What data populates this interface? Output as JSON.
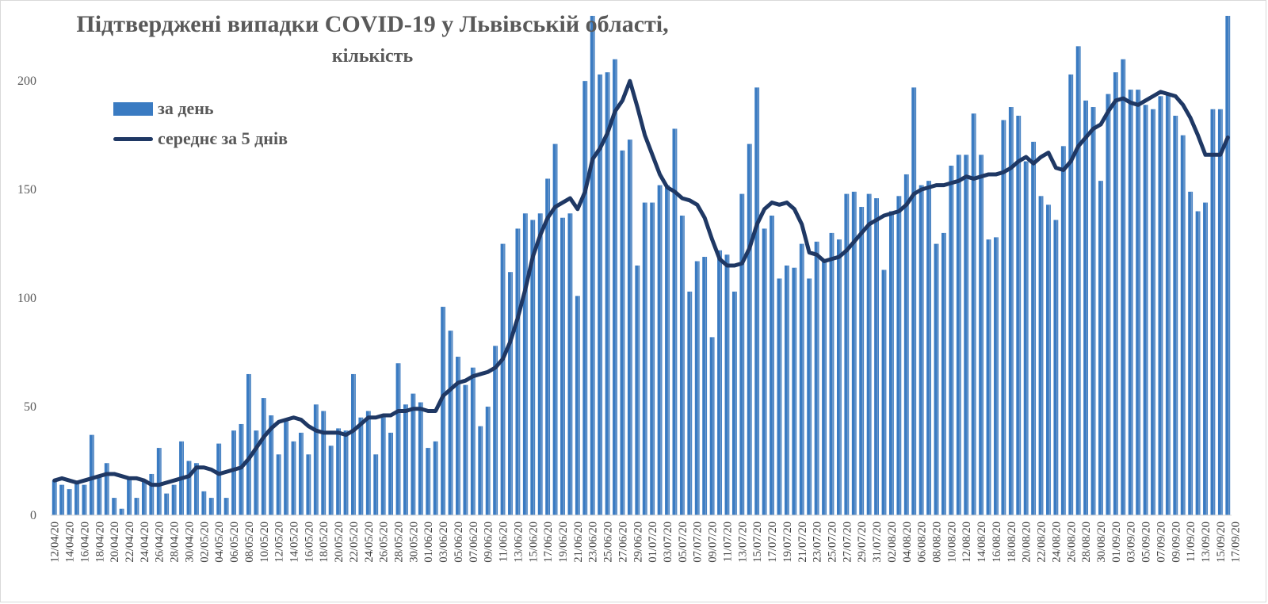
{
  "chart_data": {
    "type": "bar",
    "title": "Підтверджені випадки COVID-19 у Львівській області,",
    "subtitle": "кількість",
    "ylim": [
      0,
      230
    ],
    "yticks": [
      0,
      50,
      100,
      150,
      200
    ],
    "grid": false,
    "legend_position": "top-left",
    "x_labels": [
      "12/04/20",
      "14/04/20",
      "16/04/20",
      "18/04/20",
      "20/04/20",
      "22/04/20",
      "24/04/20",
      "26/04/20",
      "28/04/20",
      "30/04/20",
      "02/05/20",
      "04/05/20",
      "06/05/20",
      "08/05/20",
      "10/05/20",
      "12/05/20",
      "14/05/20",
      "16/05/20",
      "18/05/20",
      "20/05/20",
      "22/05/20",
      "24/05/20",
      "26/05/20",
      "28/05/20",
      "30/05/20",
      "01/06/20",
      "03/06/20",
      "05/06/20",
      "07/06/20",
      "09/06/20",
      "11/06/20",
      "13/06/20",
      "15/06/20",
      "17/06/20",
      "19/06/20",
      "21/06/20",
      "23/06/20",
      "25/06/20",
      "27/06/20",
      "29/06/20",
      "01/07/20",
      "03/07/20",
      "05/07/20",
      "07/07/20",
      "09/07/20",
      "11/07/20",
      "13/07/20",
      "15/07/20",
      "17/07/20",
      "19/07/20",
      "21/07/20",
      "23/07/20",
      "25/07/20",
      "27/07/20",
      "29/07/20",
      "31/07/20",
      "02/08/20",
      "04/08/20",
      "06/08/20",
      "08/08/20",
      "10/08/20",
      "12/08/20",
      "14/08/20",
      "16/08/20",
      "18/08/20",
      "20/08/20",
      "22/08/20",
      "24/08/20",
      "26/08/20",
      "28/08/20",
      "30/08/20",
      "01/09/20",
      "03/09/20",
      "05/09/20",
      "07/09/20",
      "09/09/20",
      "11/09/20",
      "13/09/20",
      "15/09/20",
      "17/09/20"
    ],
    "series": [
      {
        "name": "за день",
        "type": "bar",
        "color": "#3a7bc2",
        "values": [
          16,
          14,
          12,
          15,
          14,
          37,
          18,
          24,
          8,
          3,
          17,
          8,
          16,
          19,
          31,
          10,
          14,
          34,
          25,
          24,
          11,
          8,
          33,
          8,
          39,
          42,
          65,
          39,
          54,
          46,
          28,
          44,
          34,
          38,
          28,
          51,
          48,
          32,
          40,
          39,
          65,
          45,
          48,
          28,
          46,
          38,
          70,
          51,
          56,
          52,
          31,
          34,
          96,
          85,
          73,
          60,
          68,
          41,
          50,
          78,
          125,
          112,
          132,
          139,
          136,
          139,
          155,
          171,
          137,
          139,
          101,
          200,
          240,
          203,
          204,
          210,
          168,
          173,
          115,
          144,
          144,
          152,
          152,
          178,
          138,
          103,
          117,
          119,
          82,
          122,
          120,
          103,
          148,
          171,
          197,
          132,
          138,
          109,
          115,
          114,
          125,
          109,
          126,
          118,
          130,
          127,
          148,
          149,
          142,
          148,
          146,
          113,
          140,
          147,
          157,
          197,
          152,
          154,
          125,
          130,
          161,
          166,
          166,
          185,
          166,
          127,
          128,
          182,
          188,
          184,
          163,
          172,
          147,
          143,
          136,
          170,
          203,
          216,
          191,
          188,
          154,
          194,
          204,
          210,
          196,
          196,
          189,
          187,
          193,
          194,
          184,
          175,
          149,
          140,
          144,
          187,
          187,
          234
        ],
        "stripe_step": 0.5
      },
      {
        "name": "середнє за 5 днів",
        "type": "line",
        "color": "#1f3864",
        "values": [
          16,
          17,
          16,
          15,
          16,
          17,
          18,
          19,
          19,
          18,
          17,
          17,
          16,
          14,
          14,
          15,
          16,
          17,
          18,
          22,
          22,
          21,
          19,
          20,
          21,
          22,
          26,
          31,
          36,
          40,
          43,
          44,
          45,
          44,
          41,
          39,
          38,
          38,
          38,
          37,
          39,
          42,
          45,
          45,
          46,
          46,
          48,
          48,
          49,
          49,
          48,
          48,
          55,
          58,
          61,
          62,
          64,
          65,
          66,
          68,
          72,
          80,
          91,
          104,
          119,
          129,
          137,
          142,
          144,
          146,
          141,
          149,
          164,
          169,
          176,
          186,
          191,
          200,
          188,
          175,
          166,
          157,
          151,
          149,
          146,
          145,
          143,
          137,
          127,
          118,
          115,
          115,
          116,
          123,
          134,
          141,
          144,
          143,
          144,
          141,
          134,
          121,
          120,
          117,
          118,
          119,
          122,
          126,
          130,
          134,
          136,
          138,
          139,
          140,
          143,
          148,
          150,
          151,
          152,
          152,
          153,
          154,
          156,
          155,
          156,
          157,
          157,
          158,
          160,
          163,
          165,
          162,
          165,
          167,
          160,
          159,
          163,
          170,
          174,
          178,
          180,
          186,
          191,
          192,
          190,
          189,
          191,
          193,
          195,
          194,
          193,
          189,
          183,
          175,
          166,
          166,
          166,
          174
        ]
      }
    ]
  }
}
